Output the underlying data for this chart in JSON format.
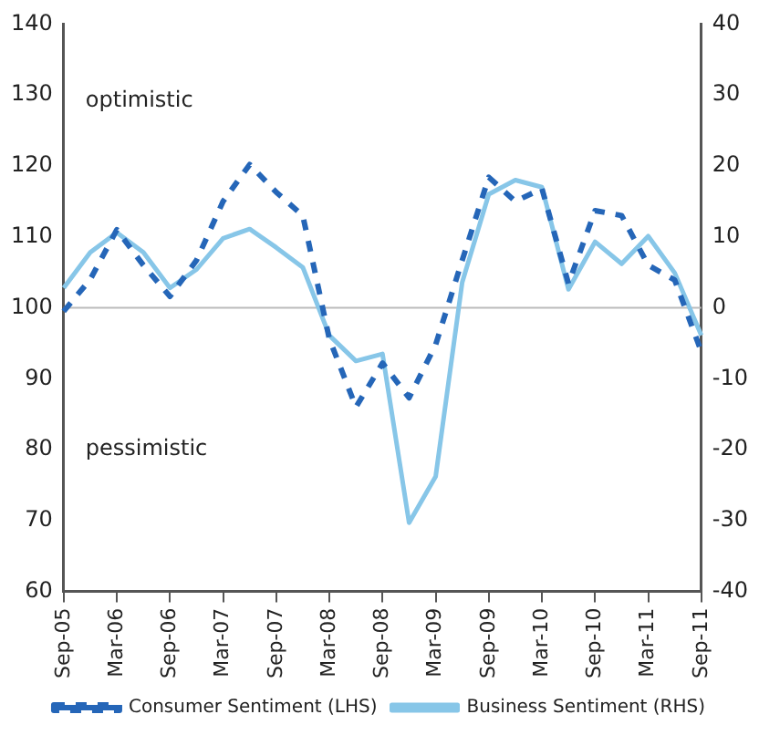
{
  "chart_data": {
    "type": "line",
    "categories": [
      "Sep-05",
      null,
      "Mar-06",
      null,
      "Sep-06",
      null,
      "Mar-07",
      null,
      "Sep-07",
      null,
      "Mar-08",
      null,
      "Sep-08",
      null,
      "Mar-09",
      null,
      "Sep-09",
      null,
      "Mar-10",
      null,
      "Sep-10",
      null,
      "Mar-11",
      null,
      "Sep-11"
    ],
    "series": [
      {
        "name": "Consumer Sentiment (LHS)",
        "color": "#2566b8",
        "line_style": "dashed",
        "values": [
          99.5,
          104,
          111,
          106,
          101.6,
          106.7,
          115,
          120.2,
          116.3,
          113,
          95.6,
          86,
          92.2,
          87.3,
          94.8,
          106.7,
          118.4,
          115,
          116.8,
          103.4,
          113.7,
          113,
          106,
          103.9,
          93.8
        ]
      },
      {
        "name": "Business Sentiment (RHS)",
        "color": "#87c6e8",
        "line_style": "solid",
        "axis": "y2",
        "values": [
          2.8,
          7.8,
          10.6,
          7.8,
          2.8,
          5.4,
          9.8,
          11.1,
          8.5,
          5.7,
          -3.9,
          -7.5,
          -6.5,
          -30.3,
          -23.8,
          3.6,
          16,
          18,
          17,
          2.6,
          9.3,
          6.2,
          10.1,
          4.9,
          -3.9
        ]
      }
    ],
    "ylim": [
      60,
      140
    ],
    "yticks": [
      60,
      70,
      80,
      90,
      100,
      110,
      120,
      130,
      140
    ],
    "y2lim": [
      -40,
      40
    ],
    "y2ticks": [
      -40,
      -30,
      -20,
      -10,
      0,
      10,
      20,
      30,
      40
    ],
    "ref_lines": [
      {
        "axis": "y",
        "value": 100,
        "color": "#bbbbbb"
      }
    ],
    "annotations": [
      "optimistic",
      "pessimistic"
    ],
    "grid": false,
    "legend": "bottom",
    "marker": "none"
  }
}
